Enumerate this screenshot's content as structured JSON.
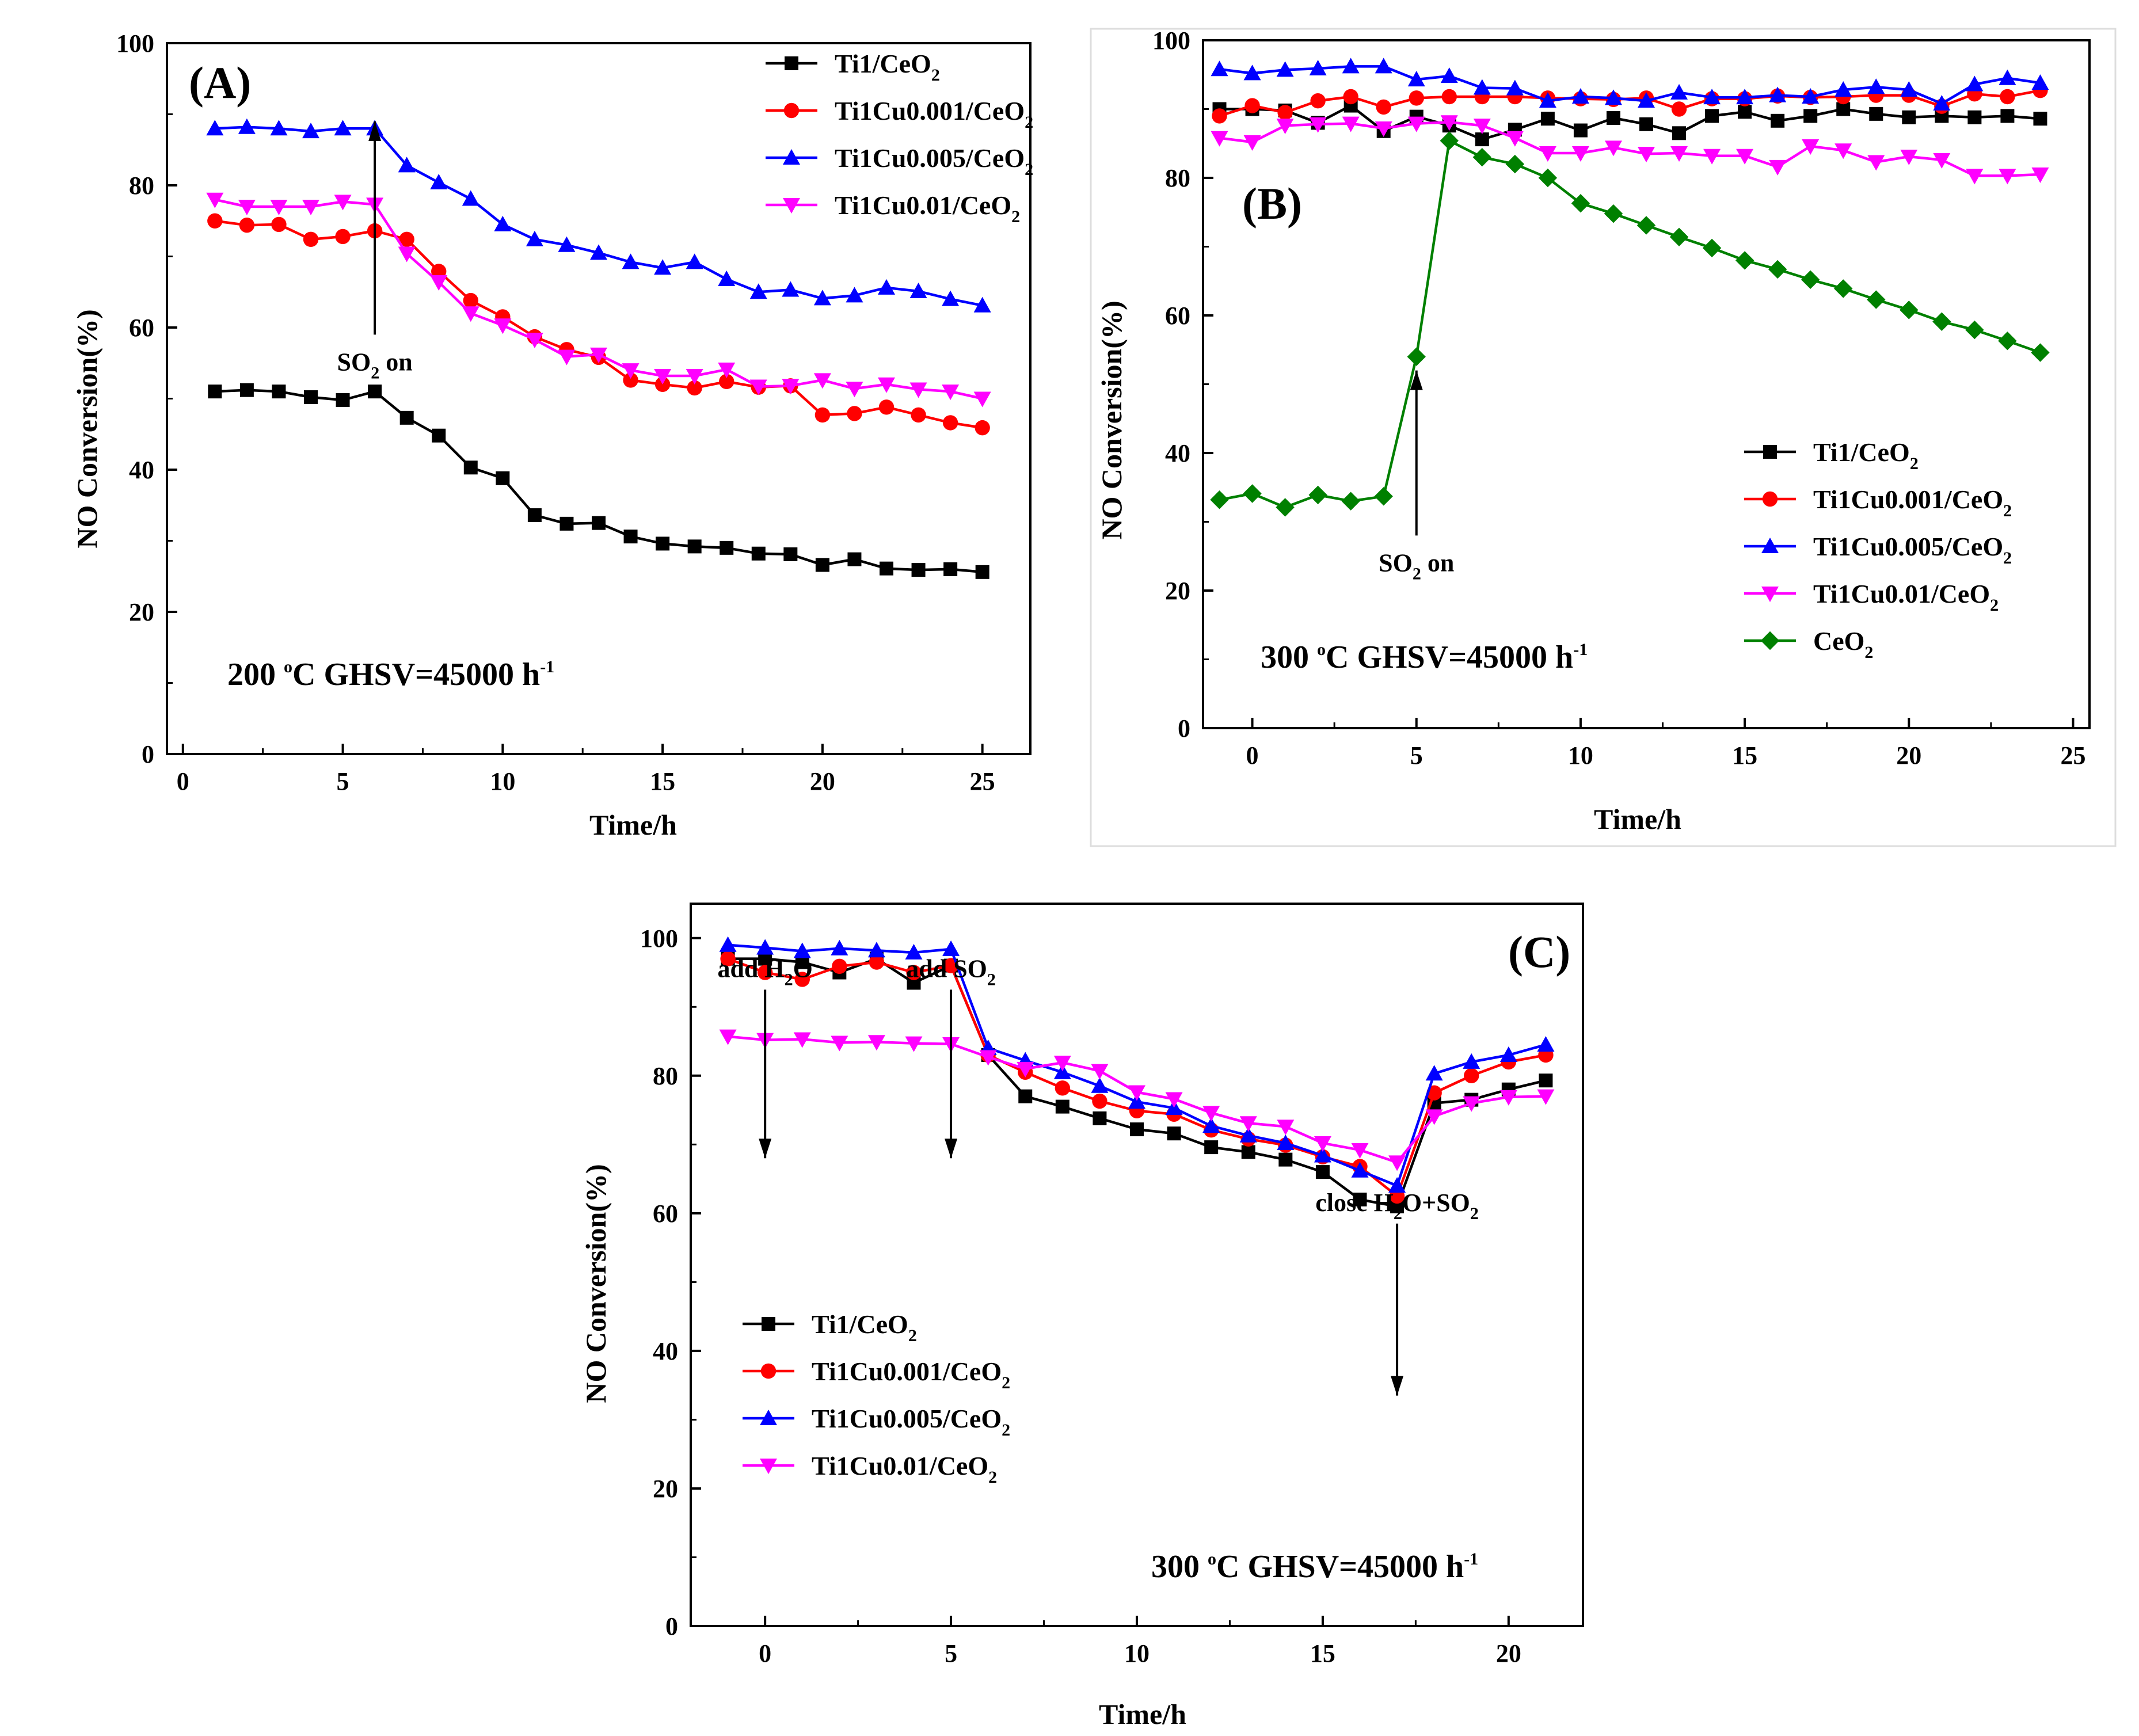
{
  "chart_data": [
    {
      "type": "line",
      "panel_label": "(A)",
      "xlabel": "Time/h",
      "ylabel": "NO Conversion(%)",
      "xlim": [
        -0.5,
        26.5
      ],
      "ylim": [
        0,
        100
      ],
      "xticks": [
        "0",
        "5",
        "10",
        "15",
        "20",
        "25"
      ],
      "yticks": [
        "0",
        "20",
        "40",
        "60",
        "80",
        "100"
      ],
      "condition": "200 °C GHSV=45000 h⁻¹",
      "condition_text": {
        "a": "200 ",
        "sup1": "o",
        "b": "C GHSV=45000 h",
        "sup2": "-1"
      },
      "annotations": [
        {
          "label": "SO₂ on",
          "text": {
            "a": "SO",
            "sub": "2",
            "b": " on"
          },
          "x": 6,
          "from_y": 89,
          "to_y": 59
        }
      ],
      "legend_position": "top-right",
      "x": [
        1,
        2,
        3,
        4,
        5,
        6,
        7,
        8,
        9,
        10,
        11,
        12,
        13,
        14,
        15,
        16,
        17,
        18,
        19,
        20,
        21,
        22,
        23,
        24,
        25
      ],
      "series": [
        {
          "name": "Ti1/CeO₂",
          "label": {
            "a": "Ti1/CeO",
            "sub": "2"
          },
          "color": "#000000",
          "marker": "square",
          "values": [
            51,
            51.2,
            51,
            50.2,
            49.8,
            51,
            47.3,
            44.8,
            40.3,
            38.8,
            33.6,
            32.4,
            32.5,
            30.6,
            29.6,
            29.2,
            29,
            28.2,
            28.1,
            26.6,
            27.4,
            26.1,
            25.9,
            26,
            25.6
          ]
        },
        {
          "name": "Ti1Cu0.001/CeO₂",
          "label": {
            "a": "Ti1Cu0.001/CeO",
            "sub": "2"
          },
          "color": "#ff0000",
          "marker": "circle",
          "values": [
            75,
            74.4,
            74.5,
            72.4,
            72.8,
            73.6,
            72.4,
            67.9,
            63.8,
            61.5,
            58.7,
            56.9,
            55.8,
            52.6,
            52,
            51.5,
            52.4,
            51.6,
            51.8,
            47.7,
            47.9,
            48.8,
            47.7,
            46.6,
            45.9
          ]
        },
        {
          "name": "Ti1Cu0.005/CeO₂",
          "label": {
            "a": "Ti1Cu0.005/CeO",
            "sub": "2"
          },
          "color": "#0000ff",
          "marker": "triangle-up",
          "values": [
            88,
            88.2,
            88,
            87.6,
            88,
            88,
            82.8,
            80.4,
            78.1,
            74.5,
            72.4,
            71.6,
            70.5,
            69.2,
            68.4,
            69.2,
            66.8,
            65,
            65.3,
            64.1,
            64.5,
            65.6,
            65.1,
            64,
            63.1
          ]
        },
        {
          "name": "Ti1Cu0.01/CeO₂",
          "label": {
            "a": "Ti1Cu0.01/CeO",
            "sub": "2"
          },
          "color": "#ff00ff",
          "marker": "triangle-down",
          "values": [
            78,
            77,
            77,
            77,
            77.7,
            77.3,
            70.4,
            66.4,
            62,
            60.3,
            58.3,
            55.9,
            56.2,
            54,
            53.2,
            53.2,
            54.1,
            51.7,
            51.8,
            52.6,
            51.4,
            52,
            51.3,
            51,
            50
          ]
        }
      ]
    },
    {
      "type": "line",
      "panel_label": "(B)",
      "xlabel": "Time/h",
      "ylabel": "NO Conversion(%)",
      "xlim": [
        -1.5,
        25.5
      ],
      "ylim": [
        0,
        100
      ],
      "xticks": [
        "0",
        "5",
        "10",
        "15",
        "20",
        "25"
      ],
      "yticks": [
        "0",
        "20",
        "40",
        "60",
        "80",
        "100"
      ],
      "condition": "300 °C GHSV=45000 h⁻¹",
      "condition_text": {
        "a": "300 ",
        "sup1": "o",
        "b": "C GHSV=45000 h",
        "sup2": "-1"
      },
      "annotations": [
        {
          "label": "SO₂ on",
          "text": {
            "a": "SO",
            "sub": "2",
            "b": " on"
          },
          "x": 5,
          "from_y": 52,
          "to_y": 28
        }
      ],
      "legend_position": "bottom-right",
      "x": [
        -1,
        0,
        1,
        2,
        3,
        4,
        5,
        6,
        7,
        8,
        9,
        10,
        11,
        12,
        13,
        14,
        15,
        16,
        17,
        18,
        19,
        20,
        21,
        22,
        23,
        24
      ],
      "series": [
        {
          "name": "Ti1/CeO₂",
          "label": {
            "a": "Ti1/CeO",
            "sub": "2"
          },
          "color": "#000000",
          "marker": "square",
          "values": [
            90,
            90,
            89.8,
            88,
            90.5,
            86.8,
            88.9,
            87.6,
            85.6,
            87,
            88.6,
            86.9,
            88.7,
            87.8,
            86.5,
            89,
            89.6,
            88.3,
            89,
            90,
            89.3,
            88.8,
            89,
            88.8,
            89,
            88.6
          ]
        },
        {
          "name": "Ti1Cu0.001/CeO₂",
          "label": {
            "a": "Ti1Cu0.001/CeO",
            "sub": "2"
          },
          "color": "#ff0000",
          "marker": "circle",
          "values": [
            89,
            90.5,
            89.5,
            91.2,
            91.8,
            90.3,
            91.6,
            91.8,
            91.8,
            91.8,
            91.6,
            91.5,
            91.4,
            91.6,
            90,
            91.5,
            91.5,
            91.9,
            91.7,
            91.8,
            92,
            92,
            90.4,
            92.2,
            91.8,
            92.7
          ]
        },
        {
          "name": "Ti1Cu0.005/CeO₂",
          "label": {
            "a": "Ti1Cu0.005/CeO",
            "sub": "2"
          },
          "color": "#0000ff",
          "marker": "triangle-up",
          "values": [
            95.8,
            95.2,
            95.7,
            95.9,
            96.2,
            96.2,
            94.3,
            94.8,
            93.1,
            93,
            91.2,
            91.8,
            91.6,
            91.2,
            92.4,
            91.7,
            91.7,
            92,
            91.8,
            92.8,
            93.2,
            92.8,
            90.8,
            93.6,
            94.5,
            93.8
          ]
        },
        {
          "name": "Ti1Cu0.01/CeO₂",
          "label": {
            "a": "Ti1Cu0.01/CeO",
            "sub": "2"
          },
          "color": "#ff00ff",
          "marker": "triangle-down",
          "values": [
            85.8,
            85.2,
            87.6,
            87.8,
            87.9,
            87.2,
            87.9,
            88.1,
            87.6,
            85.8,
            83.6,
            83.6,
            84.4,
            83.5,
            83.6,
            83.2,
            83.2,
            81.6,
            84.6,
            84,
            82.3,
            83.1,
            82.6,
            80.3,
            80.3,
            80.5
          ]
        },
        {
          "name": "CeO₂",
          "label": {
            "a": "CeO",
            "sub": "2"
          },
          "color": "#008000",
          "marker": "diamond",
          "values": [
            33.2,
            34.1,
            32.1,
            33.9,
            33,
            33.7,
            54,
            85.4,
            83,
            82,
            80,
            76.3,
            74.8,
            73.1,
            71.4,
            69.8,
            68,
            66.7,
            65.2,
            63.9,
            62.3,
            60.8,
            59.1,
            57.9,
            56.3,
            54.6
          ]
        }
      ]
    },
    {
      "type": "line",
      "panel_label": "(C)",
      "xlabel": "Time/h",
      "ylabel": "NO Conversion(%)",
      "xlim": [
        -2,
        22
      ],
      "ylim": [
        0,
        105
      ],
      "xticks": [
        "0",
        "5",
        "10",
        "15",
        "20"
      ],
      "yticks": [
        "0",
        "20",
        "40",
        "60",
        "80",
        "100"
      ],
      "condition": "300 °C GHSV=45000 h⁻¹",
      "condition_text": {
        "a": "300 ",
        "sup1": "o",
        "b": "C  GHSV=45000 h",
        "sup2": "-1"
      },
      "annotations": [
        {
          "label": "add H₂O",
          "text": {
            "a": "add H",
            "sub": "2",
            "b": "O"
          },
          "x": 0,
          "from_y": 68,
          "to_y": 92.5
        },
        {
          "label": "add SO₂",
          "text": {
            "a": "add SO",
            "sub": "2",
            "b": ""
          },
          "x": 5,
          "from_y": 68,
          "to_y": 92.5
        },
        {
          "label": "close H₂O+SO₂",
          "text": {
            "a": "close H",
            "sub": "2",
            "b": "O+SO",
            "sub2": "2"
          },
          "x": 17,
          "from_y": 33.5,
          "to_y": 58.5
        }
      ],
      "legend_position": "bottom-left",
      "x": [
        -1,
        0,
        1,
        2,
        3,
        4,
        5,
        6,
        7,
        8,
        9,
        10,
        11,
        12,
        13,
        14,
        15,
        16,
        17,
        18,
        19,
        20,
        21
      ],
      "series": [
        {
          "name": "Ti1/CeO₂",
          "label": {
            "a": "Ti1/CeO",
            "sub": "2"
          },
          "color": "#000000",
          "marker": "square",
          "values": [
            97,
            97,
            96.5,
            95,
            97,
            93.5,
            96,
            83,
            77,
            75.5,
            73.8,
            72.2,
            71.6,
            69.6,
            68.9,
            67.8,
            66,
            62,
            61,
            76,
            76.5,
            78,
            79.3
          ]
        },
        {
          "name": "Ti1Cu0.001/CeO₂",
          "label": {
            "a": "Ti1Cu0.001/CeO",
            "sub": "2"
          },
          "color": "#ff0000",
          "marker": "circle",
          "values": [
            97,
            95,
            94,
            95.9,
            96.5,
            95,
            96,
            83,
            80.5,
            78.2,
            76.3,
            74.9,
            74.4,
            72.1,
            70.8,
            69.9,
            68.2,
            66.8,
            62.5,
            77.5,
            80,
            82,
            83
          ]
        },
        {
          "name": "Ti1Cu0.005/CeO₂",
          "label": {
            "a": "Ti1Cu0.005/CeO",
            "sub": "2"
          },
          "color": "#0000ff",
          "marker": "triangle-up",
          "values": [
            99,
            98.6,
            98.1,
            98.5,
            98.2,
            97.9,
            98.4,
            84,
            82.2,
            80.5,
            78.5,
            76.2,
            75.3,
            72.7,
            71.3,
            70.2,
            68.4,
            66.2,
            64,
            80.3,
            82,
            83,
            84.5
          ]
        },
        {
          "name": "Ti1Cu0.01/CeO₂",
          "label": {
            "a": "Ti1Cu0.01/CeO",
            "sub": "2"
          },
          "color": "#ff00ff",
          "marker": "triangle-down",
          "values": [
            85.7,
            85.2,
            85.3,
            84.8,
            84.9,
            84.7,
            84.6,
            82.7,
            81,
            81.9,
            80.7,
            77.6,
            76.6,
            74.6,
            73.1,
            72.6,
            70.2,
            69.2,
            67.4,
            74.1,
            76,
            76.9,
            77
          ]
        }
      ]
    }
  ]
}
